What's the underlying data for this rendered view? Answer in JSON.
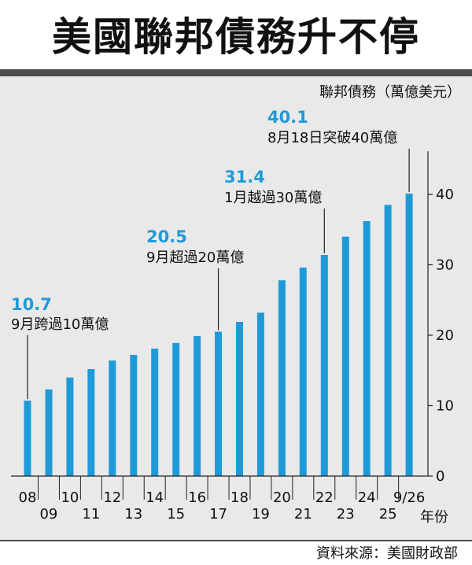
{
  "title": "美國聯邦債務升不停",
  "source": "資料來源：美國財政部",
  "chart_data": {
    "type": "bar",
    "categories": [
      "08",
      "09",
      "10",
      "11",
      "12",
      "13",
      "14",
      "15",
      "16",
      "17",
      "18",
      "19",
      "20",
      "21",
      "22",
      "23",
      "24",
      "25",
      "9/26"
    ],
    "values": [
      10.7,
      12.3,
      14.0,
      15.2,
      16.4,
      17.2,
      18.1,
      18.9,
      19.9,
      20.5,
      21.9,
      23.2,
      27.8,
      29.6,
      31.4,
      34.0,
      36.2,
      38.5,
      40.1
    ],
    "ylabel": "聯邦債務（萬億美元）",
    "xlabel": "年份",
    "ylim": [
      0,
      45
    ],
    "yticks": [
      0,
      10,
      20,
      30,
      40
    ],
    "bar_color": "#1f9ad8",
    "grid": false,
    "annotations": [
      {
        "index": 0,
        "value_label": "10.7",
        "text": "9月跨過10萬億"
      },
      {
        "index": 9,
        "value_label": "20.5",
        "text": "9月超過20萬億"
      },
      {
        "index": 14,
        "value_label": "31.4",
        "text": "1月越過30萬億"
      },
      {
        "index": 18,
        "value_label": "40.1",
        "text": "8月18日突破40萬億"
      }
    ]
  }
}
